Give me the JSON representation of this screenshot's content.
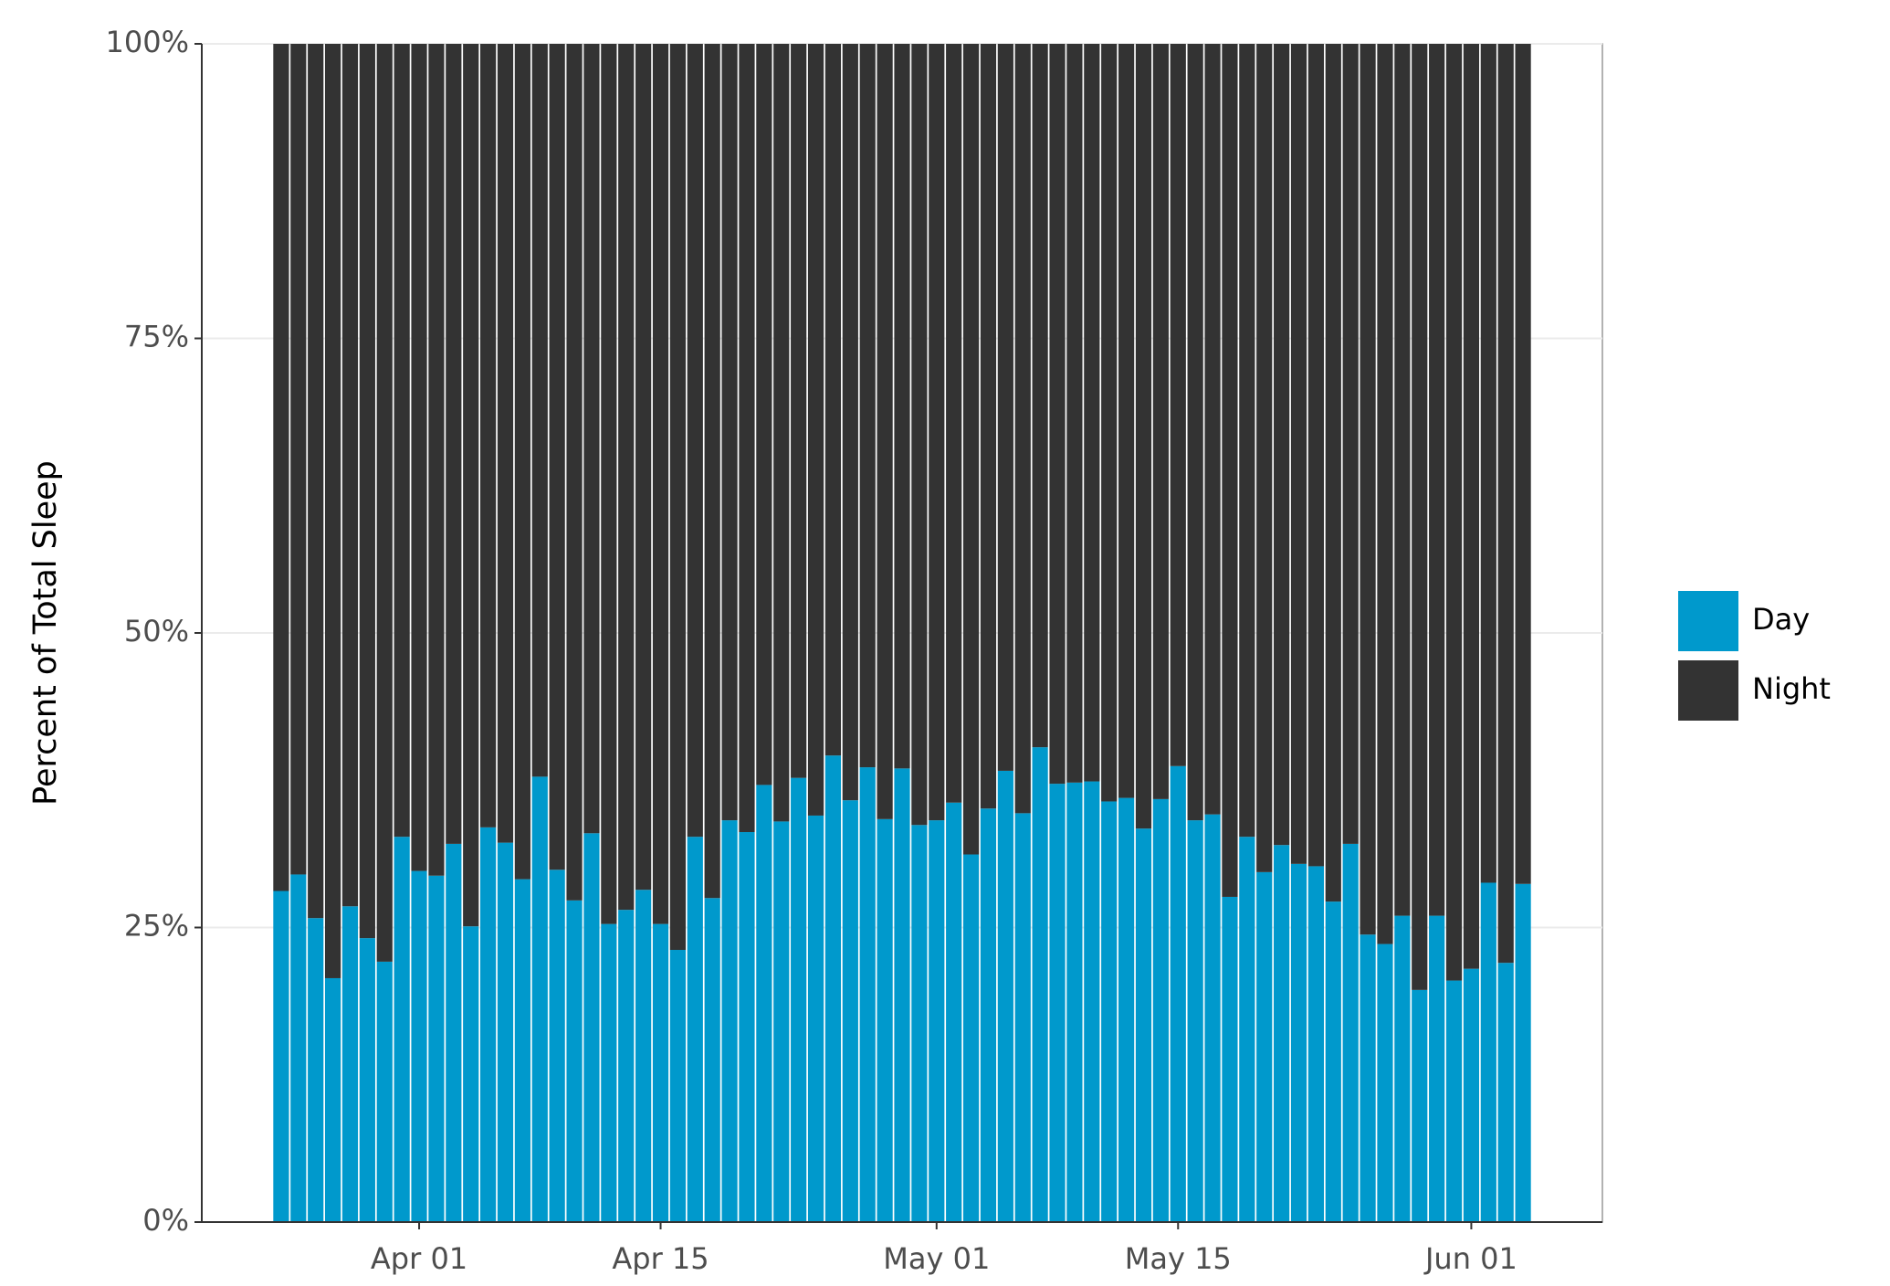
{
  "chart_data": {
    "type": "stacked_bar",
    "y_label": "Percent of Total Sleep",
    "categories": [
      null,
      null,
      null,
      null,
      null,
      null,
      null,
      null,
      "Apr 01",
      null,
      null,
      null,
      null,
      null,
      null,
      null,
      null,
      null,
      null,
      null,
      null,
      null,
      "Apr 15",
      null,
      null,
      null,
      null,
      null,
      null,
      null,
      null,
      null,
      null,
      null,
      null,
      null,
      null,
      null,
      "May 01",
      null,
      null,
      null,
      null,
      null,
      null,
      null,
      null,
      null,
      null,
      null,
      null,
      null,
      "May 15",
      null,
      null,
      null,
      null,
      null,
      null,
      null,
      null,
      null,
      null,
      null,
      null,
      null,
      null,
      null,
      null,
      "Jun 01",
      null,
      null,
      null
    ],
    "series": [
      {
        "name": "Day",
        "color": "#0099cc",
        "values": [
          28.1,
          29.5,
          25.8,
          20.7,
          26.8,
          24.1,
          22.1,
          32.7,
          29.8,
          29.4,
          32.1,
          25.1,
          33.5,
          32.2,
          29.1,
          37.8,
          29.9,
          27.3,
          33.0,
          25.3,
          26.5,
          28.2,
          25.3,
          23.1,
          32.7,
          27.5,
          34.1,
          33.1,
          37.1,
          34.0,
          37.7,
          34.5,
          39.6,
          35.8,
          38.6,
          34.2,
          38.5,
          33.7,
          34.1,
          35.6,
          31.2,
          35.1,
          38.3,
          34.7,
          40.3,
          37.2,
          37.3,
          37.4,
          35.7,
          36.0,
          33.4,
          35.9,
          38.7,
          34.1,
          34.6,
          27.6,
          32.7,
          29.7,
          32.0,
          30.4,
          30.2,
          27.2,
          32.1,
          24.4,
          23.6,
          26.0,
          19.7,
          26.0,
          20.5,
          21.5,
          28.8,
          22.0,
          28.7
        ]
      },
      {
        "name": "Night",
        "color": "#333333",
        "values": [
          71.9,
          70.5,
          74.2,
          79.3,
          73.2,
          75.9,
          77.9,
          67.3,
          70.2,
          70.6,
          67.9,
          74.9,
          66.5,
          67.8,
          70.9,
          62.2,
          70.1,
          72.7,
          67.0,
          74.7,
          73.5,
          71.8,
          74.7,
          76.9,
          67.3,
          72.5,
          65.9,
          66.9,
          62.9,
          66.0,
          62.3,
          65.5,
          60.4,
          64.2,
          61.4,
          65.8,
          61.5,
          66.3,
          65.9,
          64.4,
          68.8,
          64.9,
          61.7,
          65.3,
          59.7,
          62.8,
          62.7,
          62.6,
          64.3,
          64.0,
          66.6,
          64.1,
          61.3,
          65.9,
          65.4,
          72.4,
          67.3,
          70.3,
          68.0,
          69.6,
          69.8,
          72.8,
          67.9,
          75.6,
          76.4,
          74.0,
          80.3,
          74.0,
          79.5,
          78.5,
          71.2,
          78.0,
          71.3
        ]
      }
    ],
    "ylim": [
      0,
      100
    ],
    "yticks": [
      {
        "value": 0,
        "label": "0%"
      },
      {
        "value": 25,
        "label": "25%"
      },
      {
        "value": 50,
        "label": "50%"
      },
      {
        "value": 75,
        "label": "75%"
      },
      {
        "value": 100,
        "label": "100%"
      }
    ],
    "grid": true,
    "legend": "right"
  }
}
